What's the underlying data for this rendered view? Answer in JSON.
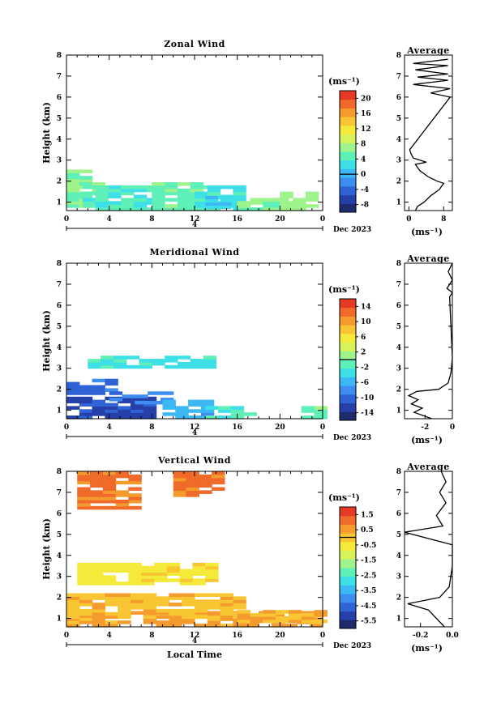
{
  "chart_data": [
    {
      "type": "heatmap",
      "title": "Zonal Wind",
      "ylabel": "Height (km)",
      "xlim": [
        0,
        24
      ],
      "ylim": [
        0.6,
        8
      ],
      "xticks": [
        "0",
        "4",
        "8",
        "12",
        "16",
        "20",
        "0"
      ],
      "yticks": [
        "1",
        "2",
        "3",
        "4",
        "5",
        "6",
        "7",
        "8"
      ],
      "date_marker": "4",
      "date_label": "Dec 2023",
      "colorbar": {
        "unit": "(ms⁻¹)",
        "ticks": [
          "20",
          "16",
          "12",
          "8",
          "4",
          "0",
          "-4",
          "-8"
        ],
        "range": [
          -10,
          22
        ]
      },
      "average": {
        "title": "Average",
        "unit": "(ms⁻¹)",
        "xticks": [
          "0",
          "8"
        ],
        "xlim": [
          -1,
          10
        ],
        "profile": [
          [
            1.5,
            0.6
          ],
          [
            2,
            0.8
          ],
          [
            3.5,
            1.0
          ],
          [
            5,
            1.3
          ],
          [
            7,
            1.6
          ],
          [
            8,
            1.9
          ],
          [
            6.5,
            2.0
          ],
          [
            4.5,
            2.2
          ],
          [
            2.5,
            2.5
          ],
          [
            1.5,
            2.8
          ],
          [
            4,
            2.9
          ],
          [
            1,
            3.1
          ],
          [
            0.5,
            3.3
          ],
          [
            0.2,
            3.5
          ],
          [
            9.5,
            6.0
          ],
          [
            5,
            6.2
          ],
          [
            9.5,
            6.4
          ],
          [
            1,
            6.6
          ],
          [
            9,
            6.8
          ],
          [
            2,
            6.95
          ],
          [
            9,
            7.1
          ],
          [
            1.5,
            7.3
          ],
          [
            9,
            7.5
          ],
          [
            1,
            7.6
          ],
          [
            9,
            7.8
          ]
        ]
      },
      "regions": [
        {
          "x": [
            0,
            1.5
          ],
          "y": [
            0.6,
            2.5
          ],
          "v": 6
        },
        {
          "x": [
            0,
            2.5
          ],
          "y": [
            1.5,
            2.1
          ],
          "v": 7
        },
        {
          "x": [
            1.5,
            8
          ],
          "y": [
            0.6,
            1.8
          ],
          "v": 4
        },
        {
          "x": [
            8,
            12
          ],
          "y": [
            0.6,
            1.9
          ],
          "v": 5
        },
        {
          "x": [
            12,
            16
          ],
          "y": [
            0.6,
            1.8
          ],
          "v": 3
        },
        {
          "x": [
            13,
            15
          ],
          "y": [
            0.7,
            1.2
          ],
          "v": 2
        },
        {
          "x": [
            16,
            20
          ],
          "y": [
            0.6,
            1.2
          ],
          "v": 6
        },
        {
          "x": [
            20,
            23
          ],
          "y": [
            0.6,
            1.5
          ],
          "v": 7
        }
      ]
    },
    {
      "type": "heatmap",
      "title": "Meridional Wind",
      "ylabel": "Height (km)",
      "xlim": [
        0,
        24
      ],
      "ylim": [
        0.6,
        8
      ],
      "xticks": [
        "0",
        "4",
        "8",
        "12",
        "16",
        "20",
        "0"
      ],
      "yticks": [
        "1",
        "2",
        "3",
        "4",
        "5",
        "6",
        "7",
        "8"
      ],
      "date_marker": "4",
      "date_label": "Dec 2023",
      "colorbar": {
        "unit": "(ms⁻¹)",
        "ticks": [
          "14",
          "10",
          "6",
          "2",
          "-2",
          "-6",
          "-10",
          "-14"
        ],
        "range": [
          -16,
          16
        ]
      },
      "average": {
        "title": "Average",
        "unit": "(ms⁻¹)",
        "xticks": [
          "-2",
          "0"
        ],
        "xlim": [
          -3.5,
          0
        ],
        "profile": [
          [
            -1.5,
            0.6
          ],
          [
            -2.8,
            0.9
          ],
          [
            -2.2,
            1.1
          ],
          [
            -3,
            1.3
          ],
          [
            -2.5,
            1.5
          ],
          [
            -3.2,
            1.7
          ],
          [
            -2.6,
            1.9
          ],
          [
            -1.0,
            2.0
          ],
          [
            -0.3,
            2.3
          ],
          [
            -0.1,
            2.8
          ],
          [
            0,
            3.5
          ],
          [
            -0.2,
            6.4
          ],
          [
            0,
            6.6
          ],
          [
            -0.4,
            6.8
          ],
          [
            0,
            7.2
          ],
          [
            -0.3,
            7.6
          ],
          [
            0,
            8
          ]
        ]
      },
      "regions": [
        {
          "x": [
            0,
            8
          ],
          "y": [
            0.6,
            1.6
          ],
          "v": -12
        },
        {
          "x": [
            0,
            4
          ],
          "y": [
            1.6,
            2.4
          ],
          "v": -10
        },
        {
          "x": [
            4,
            10
          ],
          "y": [
            1.3,
            1.8
          ],
          "v": -8
        },
        {
          "x": [
            9,
            13
          ],
          "y": [
            0.6,
            1.5
          ],
          "v": -6
        },
        {
          "x": [
            13,
            18
          ],
          "y": [
            0.6,
            1.2
          ],
          "v": -2
        },
        {
          "x": [
            2,
            14
          ],
          "y": [
            3.0,
            3.5
          ],
          "v": -3
        },
        {
          "x": [
            22,
            24
          ],
          "y": [
            0.6,
            1.1
          ],
          "v": -1
        }
      ]
    },
    {
      "type": "heatmap",
      "title": "Vertical Wind",
      "ylabel": "Height (km)",
      "xlabel": "Local Time",
      "xlim": [
        0,
        24
      ],
      "ylim": [
        0.6,
        8
      ],
      "xticks": [
        "0",
        "4",
        "8",
        "12",
        "16",
        "20",
        "0"
      ],
      "yticks": [
        "1",
        "2",
        "3",
        "4",
        "5",
        "6",
        "7",
        "8"
      ],
      "date_marker": "4",
      "date_label": "Dec 2023",
      "colorbar": {
        "unit": "(ms⁻¹)",
        "ticks": [
          "1.5",
          "0.5",
          "-0.5",
          "-1.5",
          "-2.5",
          "-3.5",
          "-4.5",
          "-5.5"
        ],
        "range": [
          -6,
          2
        ]
      },
      "average": {
        "title": "Average",
        "unit": "(ms⁻¹)",
        "xticks": [
          "-0.2",
          "0.0"
        ],
        "xlim": [
          -0.3,
          0.0
        ],
        "profile": [
          [
            -0.05,
            0.6
          ],
          [
            -0.1,
            1.0
          ],
          [
            -0.15,
            1.4
          ],
          [
            -0.28,
            1.7
          ],
          [
            -0.08,
            2.0
          ],
          [
            -0.02,
            2.5
          ],
          [
            0,
            3.5
          ],
          [
            0,
            4.5
          ],
          [
            -0.3,
            5.1
          ],
          [
            -0.06,
            5.4
          ],
          [
            -0.1,
            5.9
          ],
          [
            -0.04,
            6.5
          ],
          [
            -0.08,
            7.0
          ],
          [
            -0.04,
            7.5
          ],
          [
            -0.07,
            8
          ]
        ]
      },
      "regions": [
        {
          "x": [
            0,
            24
          ],
          "y": [
            0.6,
            1.3
          ],
          "v": 0.5
        },
        {
          "x": [
            0,
            16
          ],
          "y": [
            1.0,
            2.2
          ],
          "v": 0.2
        },
        {
          "x": [
            16,
            24
          ],
          "y": [
            0.8,
            1.4
          ],
          "v": 0.3
        },
        {
          "x": [
            1,
            14
          ],
          "y": [
            2.6,
            3.6
          ],
          "v": -0.5
        },
        {
          "x": [
            1,
            7
          ],
          "y": [
            6.2,
            8
          ],
          "v": 1.0
        },
        {
          "x": [
            10,
            14
          ],
          "y": [
            6.8,
            8
          ],
          "v": 1.0
        }
      ]
    }
  ]
}
